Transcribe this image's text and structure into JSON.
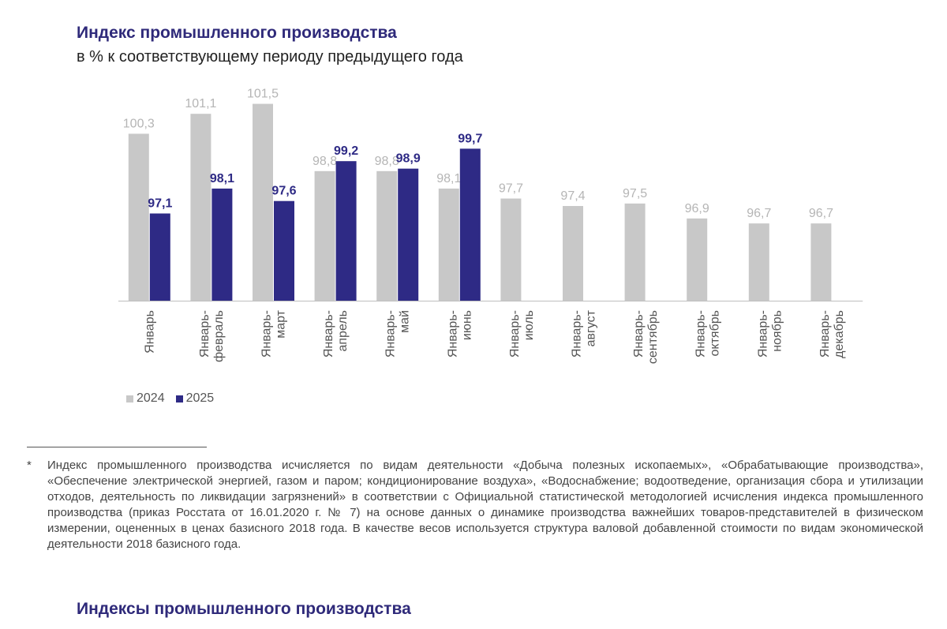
{
  "title": "Индекс промышленного производства",
  "subtitle": "в % к соответствующему периоду предыдущего года",
  "chart_data": {
    "type": "bar",
    "categories": [
      [
        "Январь"
      ],
      [
        "Январь-",
        "февраль"
      ],
      [
        "Январь-",
        "март"
      ],
      [
        "Январь-",
        "апрель"
      ],
      [
        "Январь-",
        "май"
      ],
      [
        "Январь-",
        "июнь"
      ],
      [
        "Январь-",
        "июль"
      ],
      [
        "Январь-",
        "август"
      ],
      [
        "Январь-",
        "сентябрь"
      ],
      [
        "Январь-",
        "октябрь"
      ],
      [
        "Январь-",
        "ноябрь"
      ],
      [
        "Январь-",
        "декабрь"
      ]
    ],
    "series": [
      {
        "name": "2024",
        "color": "#c8c8c8",
        "label_color": "#b5b5b5",
        "values": [
          100.3,
          101.1,
          101.5,
          98.8,
          98.8,
          98.1,
          97.7,
          97.4,
          97.5,
          96.9,
          96.7,
          96.7
        ],
        "labels": [
          "100,3",
          "101,1",
          "101,5",
          "98,8",
          "98,8",
          "98,1",
          "97,7",
          "97,4",
          "97,5",
          "96,9",
          "96,7",
          "96,7"
        ]
      },
      {
        "name": "2025",
        "color": "#2e2a85",
        "label_color": "#2e2a85",
        "values": [
          97.1,
          98.1,
          97.6,
          99.2,
          98.9,
          99.7,
          null,
          null,
          null,
          null,
          null,
          null
        ],
        "labels": [
          "97,1",
          "98,1",
          "97,6",
          "99,2",
          "98,9",
          "99,7",
          null,
          null,
          null,
          null,
          null,
          null
        ]
      }
    ],
    "ylim": [
      93.6,
      102.5
    ],
    "legend": "bottom-left",
    "grid": false
  },
  "legend": {
    "items": [
      "2024",
      "2025"
    ]
  },
  "footnote": {
    "marker": "*",
    "text": "Индекс промышленного производства исчисляется по видам деятельности «Добыча полезных ископаемых», «Обрабатывающие производства», «Обеспечение электрической энергией, газом и паром; кондиционирование воздуха», «Водоснабжение; водоотведение, организация сбора и утилизации отходов, деятельность по ликвидации загрязнений» в соответствии с Официальной статистической методологией исчисления индекса промышленного производства (приказ Росстата от 16.01.2020 г. № 7) на основе данных о динамике производства важнейших товаров-представителей в физическом измерении, оцененных в ценах базисного 2018 года. В качестве весов используется структура валовой добавленной стоимости по видам экономической деятельности 2018 базисного года."
  },
  "heading2": "Индексы промышленного производства"
}
